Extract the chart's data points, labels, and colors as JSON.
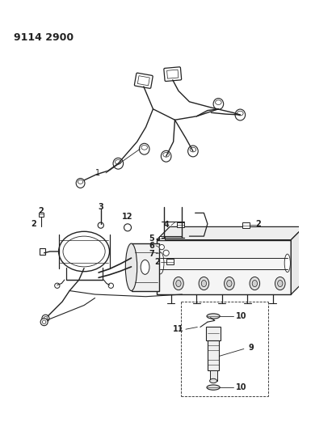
{
  "title": "9114 2900",
  "bg": "#ffffff",
  "lc": "#222222",
  "figsize": [
    4.11,
    5.33
  ],
  "dpi": 100
}
